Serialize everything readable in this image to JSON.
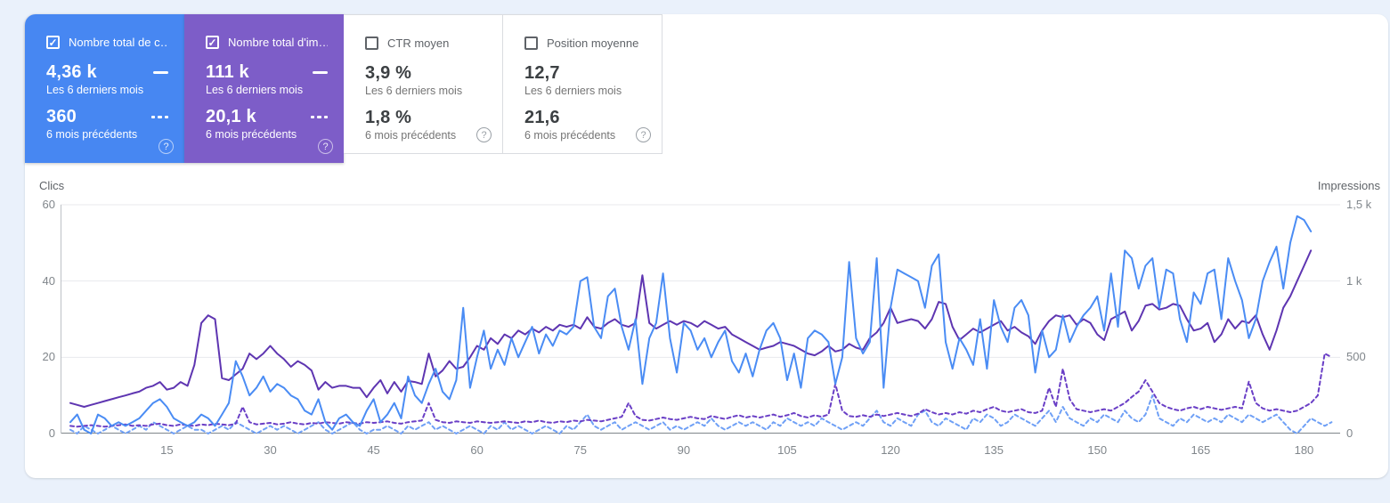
{
  "page": {
    "background": "#eaf1fb",
    "panel_background": "#ffffff"
  },
  "cards": [
    {
      "id": "total-clicks",
      "title": "Nombre total de c…",
      "checked": true,
      "selected": true,
      "background": "#4787f2",
      "value_current": "4,36 k",
      "label_current": "Les 6 derniers mois",
      "value_previous": "360",
      "label_previous": "6 mois précédents"
    },
    {
      "id": "total-impressions",
      "title": "Nombre total d'im…",
      "checked": true,
      "selected": true,
      "background": "#7d5dc8",
      "value_current": "111 k",
      "label_current": "Les 6 derniers mois",
      "value_previous": "20,1 k",
      "label_previous": "6 mois précédents"
    },
    {
      "id": "average-ctr",
      "title": "CTR moyen",
      "checked": false,
      "selected": false,
      "background": "",
      "value_current": "3,9 %",
      "label_current": "Les 6 derniers mois",
      "value_previous": "1,8 %",
      "label_previous": "6 mois précédents"
    },
    {
      "id": "average-position",
      "title": "Position moyenne",
      "checked": false,
      "selected": false,
      "background": "",
      "value_current": "12,7",
      "label_current": "Les 6 derniers mois",
      "value_previous": "21,6",
      "label_previous": "6 mois précédents"
    }
  ],
  "chart_data": {
    "type": "line",
    "grid": true,
    "x_axis": {
      "unit": "day-index",
      "tick_days": [
        15,
        30,
        45,
        60,
        75,
        90,
        105,
        120,
        135,
        150,
        165,
        180
      ],
      "range_days": [
        1,
        184
      ]
    },
    "left_axis": {
      "label": "Clics",
      "range": [
        0,
        60
      ],
      "ticks": [
        "60",
        "40",
        "20",
        "0"
      ],
      "tick_values": [
        60,
        40,
        20,
        0
      ]
    },
    "right_axis": {
      "label": "Impressions",
      "range": [
        0,
        1500
      ],
      "ticks": [
        "1,5 k",
        "1 k",
        "500",
        "0"
      ],
      "tick_values": [
        1500,
        1000,
        500,
        0
      ]
    },
    "series": [
      {
        "name": "Clics – 6 mois précédents",
        "dom_name": "clicks-previous-line",
        "axis": "left",
        "style": "dashed",
        "color": "#6fa0f6",
        "values": [
          1,
          0,
          2,
          1,
          0,
          1,
          2,
          1,
          0,
          1,
          2,
          1,
          3,
          2,
          1,
          0,
          1,
          2,
          1,
          1,
          0,
          1,
          2,
          1,
          3,
          2,
          1,
          0,
          1,
          2,
          1,
          2,
          1,
          0,
          1,
          2,
          3,
          1,
          0,
          1,
          2,
          3,
          1,
          0,
          1,
          1,
          2,
          1,
          0,
          2,
          1,
          2,
          3,
          1,
          2,
          1,
          0,
          1,
          2,
          1,
          0,
          2,
          1,
          3,
          1,
          2,
          1,
          0,
          1,
          2,
          1,
          0,
          2,
          1,
          3,
          5,
          2,
          1,
          2,
          3,
          1,
          2,
          3,
          2,
          1,
          2,
          3,
          1,
          2,
          1,
          2,
          3,
          2,
          4,
          2,
          1,
          2,
          3,
          2,
          3,
          2,
          1,
          3,
          2,
          4,
          3,
          2,
          3,
          2,
          4,
          3,
          2,
          1,
          2,
          3,
          2,
          4,
          6,
          3,
          2,
          4,
          3,
          2,
          5,
          6,
          3,
          2,
          4,
          3,
          2,
          1,
          4,
          3,
          5,
          4,
          2,
          3,
          5,
          4,
          3,
          2,
          4,
          6,
          3,
          7,
          4,
          3,
          2,
          4,
          3,
          5,
          4,
          3,
          6,
          4,
          3,
          5,
          10,
          4,
          3,
          2,
          4,
          3,
          5,
          4,
          3,
          4,
          3,
          5,
          4,
          3,
          5,
          4,
          3,
          4,
          5,
          3,
          1,
          0,
          2,
          4,
          3,
          2,
          3
        ]
      },
      {
        "name": "Impressions – 6 mois précédents",
        "dom_name": "impressions-previous-line",
        "axis": "right",
        "style": "dashed",
        "color": "#6a3fc6",
        "values": [
          50,
          45,
          50,
          55,
          50,
          45,
          50,
          55,
          60,
          50,
          55,
          50,
          60,
          65,
          55,
          50,
          60,
          55,
          50,
          60,
          55,
          65,
          60,
          55,
          65,
          175,
          75,
          60,
          65,
          70,
          60,
          65,
          75,
          65,
          60,
          70,
          65,
          75,
          70,
          65,
          75,
          70,
          65,
          75,
          70,
          75,
          80,
          70,
          65,
          75,
          80,
          85,
          200,
          90,
          75,
          70,
          80,
          75,
          70,
          80,
          75,
          70,
          75,
          80,
          75,
          70,
          80,
          75,
          85,
          75,
          70,
          80,
          75,
          85,
          80,
          90,
          85,
          80,
          90,
          100,
          110,
          200,
          115,
          90,
          85,
          95,
          105,
          95,
          90,
          100,
          110,
          100,
          95,
          115,
          105,
          95,
          110,
          120,
          105,
          115,
          105,
          115,
          125,
          110,
          120,
          135,
          115,
          105,
          120,
          110,
          125,
          325,
          150,
          115,
          110,
          120,
          110,
          125,
          115,
          125,
          135,
          125,
          115,
          130,
          160,
          140,
          125,
          135,
          125,
          140,
          130,
          150,
          140,
          160,
          175,
          150,
          140,
          150,
          160,
          140,
          135,
          150,
          300,
          175,
          425,
          225,
          160,
          150,
          140,
          150,
          160,
          150,
          175,
          200,
          240,
          275,
          350,
          275,
          200,
          175,
          160,
          150,
          165,
          175,
          160,
          175,
          165,
          155,
          165,
          175,
          165,
          340,
          200,
          165,
          150,
          160,
          150,
          140,
          150,
          175,
          200,
          250,
          525,
          500
        ]
      },
      {
        "name": "Impressions – Les 6 derniers mois",
        "dom_name": "impressions-current-line",
        "axis": "right",
        "style": "solid",
        "color": "#5e35b1",
        "values": [
          200,
          188,
          175,
          188,
          200,
          213,
          225,
          238,
          250,
          263,
          275,
          300,
          313,
          338,
          288,
          300,
          338,
          313,
          450,
          725,
          775,
          750,
          363,
          350,
          388,
          425,
          525,
          488,
          525,
          575,
          525,
          488,
          438,
          475,
          450,
          413,
          288,
          338,
          300,
          313,
          313,
          300,
          300,
          238,
          300,
          350,
          263,
          338,
          275,
          345,
          338,
          325,
          525,
          375,
          413,
          475,
          425,
          438,
          500,
          575,
          550,
          625,
          588,
          650,
          625,
          675,
          650,
          688,
          663,
          700,
          675,
          713,
          700,
          713,
          688,
          763,
          700,
          688,
          725,
          750,
          713,
          700,
          725,
          1038,
          725,
          688,
          713,
          738,
          713,
          738,
          725,
          700,
          738,
          713,
          688,
          700,
          650,
          625,
          600,
          575,
          550,
          563,
          575,
          600,
          588,
          575,
          550,
          525,
          513,
          538,
          575,
          538,
          550,
          588,
          563,
          550,
          625,
          663,
          725,
          825,
          725,
          738,
          750,
          738,
          688,
          750,
          863,
          850,
          700,
          613,
          650,
          688,
          663,
          688,
          713,
          738,
          675,
          700,
          663,
          638,
          588,
          675,
          738,
          775,
          763,
          775,
          713,
          750,
          725,
          650,
          613,
          750,
          775,
          800,
          675,
          738,
          838,
          850,
          813,
          825,
          850,
          838,
          750,
          675,
          688,
          725,
          600,
          650,
          750,
          688,
          738,
          725,
          775,
          650,
          550,
          675,
          825,
          900,
          1000,
          1100,
          1200
        ]
      },
      {
        "name": "Clics – Les 6 derniers mois",
        "dom_name": "clicks-current-line",
        "axis": "left",
        "style": "solid",
        "color": "#4a8cf4",
        "values": [
          3,
          5,
          1,
          0,
          5,
          4,
          2,
          3,
          2,
          3,
          4,
          6,
          8,
          9,
          7,
          4,
          3,
          2,
          3,
          5,
          4,
          2,
          5,
          8,
          19,
          15,
          10,
          12,
          15,
          11,
          13,
          12,
          10,
          9,
          6,
          5,
          9,
          3,
          1,
          4,
          5,
          3,
          2,
          6,
          9,
          3,
          5,
          8,
          4,
          15,
          10,
          8,
          13,
          17,
          11,
          9,
          14,
          33,
          12,
          20,
          27,
          17,
          22,
          18,
          25,
          20,
          24,
          28,
          21,
          26,
          23,
          27,
          26,
          28,
          40,
          41,
          28,
          25,
          36,
          38,
          28,
          22,
          30,
          13,
          25,
          29,
          42,
          25,
          16,
          29,
          27,
          22,
          25,
          20,
          24,
          27,
          19,
          16,
          21,
          15,
          22,
          27,
          29,
          25,
          14,
          21,
          12,
          25,
          27,
          26,
          24,
          13,
          20,
          45,
          25,
          21,
          24,
          46,
          12,
          33,
          43,
          42,
          41,
          40,
          33,
          44,
          47,
          24,
          17,
          25,
          22,
          18,
          30,
          17,
          35,
          28,
          24,
          33,
          35,
          31,
          16,
          27,
          20,
          22,
          31,
          24,
          28,
          31,
          33,
          36,
          27,
          42,
          28,
          48,
          46,
          38,
          44,
          46,
          33,
          43,
          42,
          30,
          24,
          37,
          34,
          42,
          43,
          30,
          46,
          40,
          35,
          25,
          30,
          40,
          45,
          49,
          38,
          50,
          57,
          56,
          53
        ]
      }
    ]
  }
}
